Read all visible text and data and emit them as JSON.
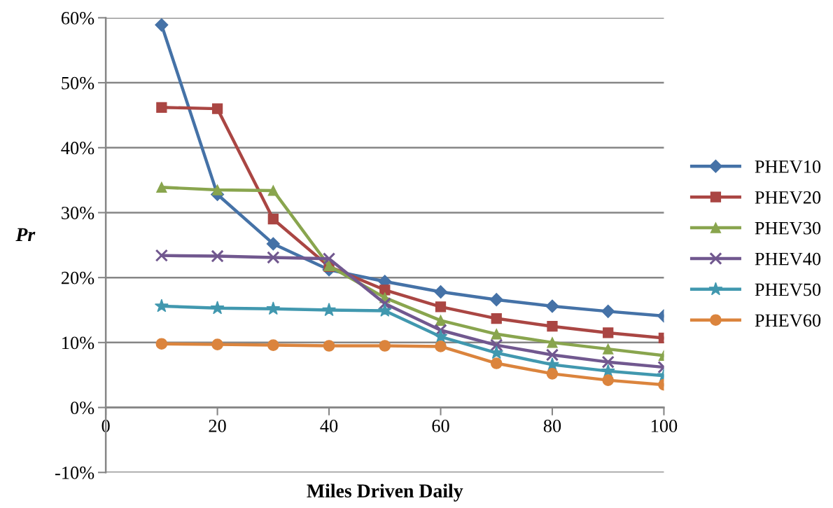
{
  "chart_data": {
    "type": "line",
    "xlabel": "Miles Driven Daily",
    "ylabel": "Pr",
    "x": [
      10,
      20,
      30,
      40,
      50,
      60,
      70,
      80,
      90,
      100
    ],
    "xlim": [
      0,
      100
    ],
    "xticks": [
      0,
      20,
      40,
      60,
      80,
      100
    ],
    "ylim": [
      -10,
      60
    ],
    "yticks": [
      {
        "value": -10,
        "label": "-10%"
      },
      {
        "value": 0,
        "label": "0%"
      },
      {
        "value": 10,
        "label": "10%"
      },
      {
        "value": 20,
        "label": "20%"
      },
      {
        "value": 30,
        "label": "30%"
      },
      {
        "value": 40,
        "label": "40%"
      },
      {
        "value": 50,
        "label": "50%"
      },
      {
        "value": 60,
        "label": "60%"
      }
    ],
    "grid": "y",
    "legend": "right",
    "line_style": "solid",
    "series": [
      {
        "name": "PHEV10",
        "color": "#4572a7",
        "marker": "diamond",
        "values": [
          58.9,
          32.8,
          25.2,
          21.2,
          19.4,
          17.8,
          16.6,
          15.6,
          14.8,
          14.1
        ]
      },
      {
        "name": "PHEV20",
        "color": "#aa4643",
        "marker": "square",
        "values": [
          46.2,
          46.0,
          29.0,
          21.7,
          18.1,
          15.5,
          13.7,
          12.5,
          11.5,
          10.7
        ]
      },
      {
        "name": "PHEV30",
        "color": "#89a54e",
        "marker": "triangle",
        "values": [
          33.9,
          33.5,
          33.4,
          21.8,
          16.9,
          13.4,
          11.3,
          10.0,
          9.0,
          8.0
        ]
      },
      {
        "name": "PHEV40",
        "color": "#71588f",
        "marker": "cross",
        "values": [
          23.4,
          23.3,
          23.1,
          22.9,
          16.0,
          11.9,
          9.6,
          8.1,
          7.0,
          6.2
        ]
      },
      {
        "name": "PHEV50",
        "color": "#4198af",
        "marker": "star",
        "values": [
          15.6,
          15.3,
          15.2,
          15.0,
          14.9,
          10.9,
          8.4,
          6.6,
          5.6,
          4.9
        ]
      },
      {
        "name": "PHEV60",
        "color": "#db843d",
        "marker": "circle",
        "values": [
          9.8,
          9.7,
          9.6,
          9.5,
          9.5,
          9.4,
          6.8,
          5.2,
          4.2,
          3.5
        ]
      }
    ]
  }
}
